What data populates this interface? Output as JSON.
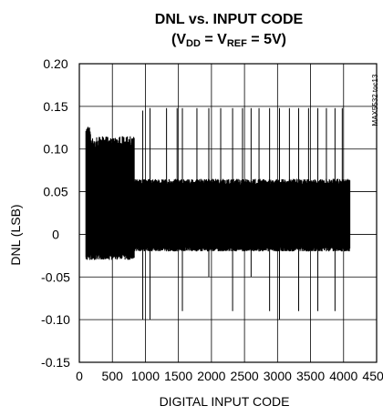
{
  "chart_data": {
    "type": "line",
    "title": "DNL vs. INPUT CODE",
    "subtitle": {
      "open": "(V",
      "dd_sub": "DD",
      "mid": " = V",
      "ref_sub": "REF",
      "close": " = 5V)"
    },
    "side_note": "MAX5532 toc13",
    "xlabel": "DIGITAL INPUT CODE",
    "ylabel": "DNL (LSB)",
    "xlim": [
      0,
      4500
    ],
    "ylim": [
      -0.15,
      0.2
    ],
    "x_ticks": [
      0,
      500,
      1000,
      1500,
      2000,
      2500,
      3000,
      3500,
      4000,
      4500
    ],
    "x_tick_labels": [
      "0",
      "500",
      "1000",
      "1500",
      "2000",
      "2500",
      "3000",
      "3500",
      "4000",
      "4500"
    ],
    "y_ticks": [
      0.2,
      0.15,
      0.1,
      0.05,
      0,
      -0.05,
      -0.1,
      -0.15
    ],
    "y_tick_labels": [
      "0.20",
      "0.15",
      "0.10",
      "0.05",
      "0",
      "-0.05",
      "-0.10",
      "-0.15"
    ],
    "grid": true,
    "series": [
      {
        "x_range": [
          100,
          4095
        ],
        "segments": [
          {
            "x": [
              100,
              170
            ],
            "y_min": -0.03,
            "y_max": 0.13
          },
          {
            "x": [
              170,
              830
            ],
            "y_min": -0.03,
            "y_max": 0.115
          },
          {
            "x": [
              830,
              4095
            ],
            "y_min": -0.02,
            "y_max": 0.065
          }
        ],
        "spikes": [
          {
            "x": 960,
            "y_min": -0.1,
            "y_max": 0.145
          },
          {
            "x": 1070,
            "y_min": -0.1,
            "y_max": 0.148
          },
          {
            "x": 1320,
            "y_min": -0.02,
            "y_max": 0.148
          },
          {
            "x": 1480,
            "y_min": -0.02,
            "y_max": 0.148
          },
          {
            "x": 1560,
            "y_min": -0.09,
            "y_max": 0.148
          },
          {
            "x": 1780,
            "y_min": -0.02,
            "y_max": 0.148
          },
          {
            "x": 1960,
            "y_min": -0.05,
            "y_max": 0.148
          },
          {
            "x": 2140,
            "y_min": -0.02,
            "y_max": 0.148
          },
          {
            "x": 2320,
            "y_min": -0.09,
            "y_max": 0.148
          },
          {
            "x": 2470,
            "y_min": -0.02,
            "y_max": 0.148
          },
          {
            "x": 2600,
            "y_min": -0.05,
            "y_max": 0.148
          },
          {
            "x": 2720,
            "y_min": -0.02,
            "y_max": 0.148
          },
          {
            "x": 2880,
            "y_min": -0.09,
            "y_max": 0.148
          },
          {
            "x": 3030,
            "y_min": -0.1,
            "y_max": 0.148
          },
          {
            "x": 3180,
            "y_min": -0.02,
            "y_max": 0.148
          },
          {
            "x": 3320,
            "y_min": -0.09,
            "y_max": 0.148
          },
          {
            "x": 3470,
            "y_min": -0.02,
            "y_max": 0.148
          },
          {
            "x": 3610,
            "y_min": -0.09,
            "y_max": 0.148
          },
          {
            "x": 3740,
            "y_min": -0.02,
            "y_max": 0.148
          },
          {
            "x": 3870,
            "y_min": -0.09,
            "y_max": 0.148
          },
          {
            "x": 3980,
            "y_min": -0.02,
            "y_max": 0.148
          }
        ]
      }
    ]
  }
}
